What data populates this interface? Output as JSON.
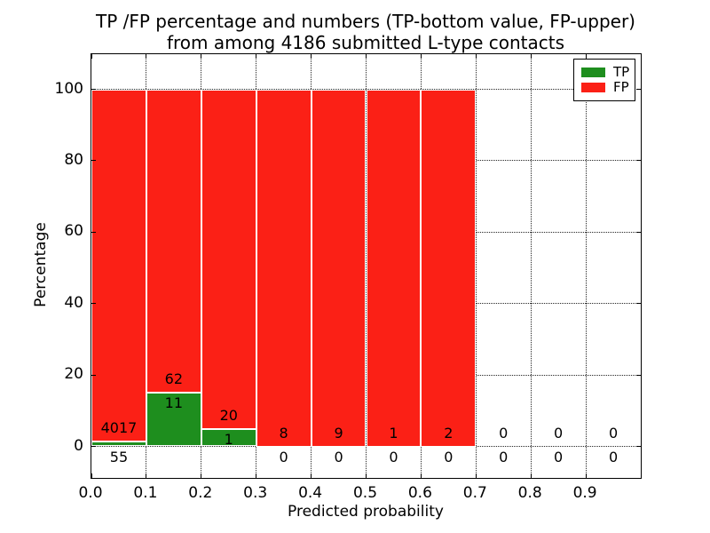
{
  "chart_data": {
    "type": "bar",
    "stacked": true,
    "title_line1": "TP /FP percentage and numbers (TP-bottom value, FP-upper)",
    "title_line2": "from among 4186 submitted L-type contacts",
    "xlabel": "Predicted probability",
    "ylabel": "Percentage",
    "xlim": [
      0.0,
      1.0
    ],
    "ylim": [
      -8.8,
      109.8
    ],
    "xticks": [
      "0.0",
      "0.1",
      "0.2",
      "0.3",
      "0.4",
      "0.5",
      "0.6",
      "0.7",
      "0.8",
      "0.9"
    ],
    "yticks": [
      "0",
      "20",
      "40",
      "60",
      "80",
      "100"
    ],
    "grid": true,
    "legend_position": "upper right",
    "bin_width": 0.1,
    "bins": [
      0.0,
      0.1,
      0.2,
      0.3,
      0.4,
      0.5,
      0.6,
      0.7,
      0.8,
      0.9
    ],
    "series": [
      {
        "name": "TP",
        "color": "#1e8e1e",
        "counts": [
          55,
          11,
          1,
          0,
          0,
          0,
          0,
          0,
          0,
          0
        ]
      },
      {
        "name": "FP",
        "color": "#fb2016",
        "counts": [
          4017,
          62,
          20,
          8,
          9,
          1,
          2,
          0,
          0,
          0
        ]
      }
    ],
    "tp_percent": [
      1.35,
      15.07,
      4.76,
      0,
      0,
      0,
      0,
      null,
      null,
      null
    ],
    "fp_percent": [
      98.65,
      84.93,
      95.24,
      100,
      100,
      100,
      100,
      null,
      null,
      null
    ],
    "total_submitted": 4186,
    "legend": [
      {
        "label": "TP",
        "color": "#1e8e1e"
      },
      {
        "label": "FP",
        "color": "#fb2016"
      }
    ]
  }
}
